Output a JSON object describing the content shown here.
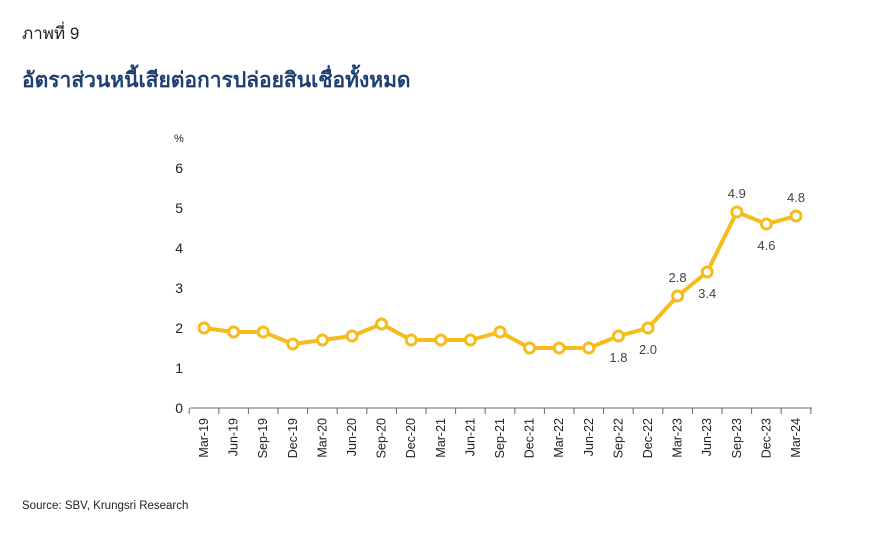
{
  "header": {
    "figure_label": "ภาพที่ 9",
    "title": "อัตราส่วนหนี้เสียต่อการปล่อยสินเชื่อทั้งหมด"
  },
  "footer": {
    "source": "Source: SBV, Krungsri Research"
  },
  "chart_data": {
    "type": "line",
    "title": "อัตราส่วนหนี้เสียต่อการปล่อยสินเชื่อทั้งหมด",
    "ylabel": "%",
    "xlabel": "",
    "ylim": [
      0,
      6
    ],
    "yticks": [
      0,
      1,
      2,
      3,
      4,
      5,
      6
    ],
    "grid": false,
    "legend": "none",
    "categories": [
      "Mar-19",
      "Jun-19",
      "Sep-19",
      "Dec-19",
      "Mar-20",
      "Jun-20",
      "Sep-20",
      "Dec-20",
      "Mar-21",
      "Jun-21",
      "Sep-21",
      "Dec-21",
      "Mar-22",
      "Jun-22",
      "Sep-22",
      "Dec-22",
      "Mar-23",
      "Jun-23",
      "Sep-23",
      "Dec-23",
      "Mar-24"
    ],
    "series": [
      {
        "values": [
          2.0,
          1.9,
          1.9,
          1.6,
          1.7,
          1.8,
          2.1,
          1.7,
          1.7,
          1.7,
          1.9,
          1.5,
          1.5,
          1.5,
          1.8,
          2.0,
          2.8,
          3.4,
          4.9,
          4.6,
          4.8
        ],
        "color": "#f5bc1c"
      }
    ],
    "data_labels": [
      {
        "index": 14,
        "text": "1.8",
        "position": "below"
      },
      {
        "index": 15,
        "text": "2.0",
        "position": "below"
      },
      {
        "index": 16,
        "text": "2.8",
        "position": "above"
      },
      {
        "index": 17,
        "text": "3.4",
        "position": "below"
      },
      {
        "index": 18,
        "text": "4.9",
        "position": "above"
      },
      {
        "index": 19,
        "text": "4.6",
        "position": "below"
      },
      {
        "index": 20,
        "text": "4.8",
        "position": "above"
      }
    ]
  }
}
